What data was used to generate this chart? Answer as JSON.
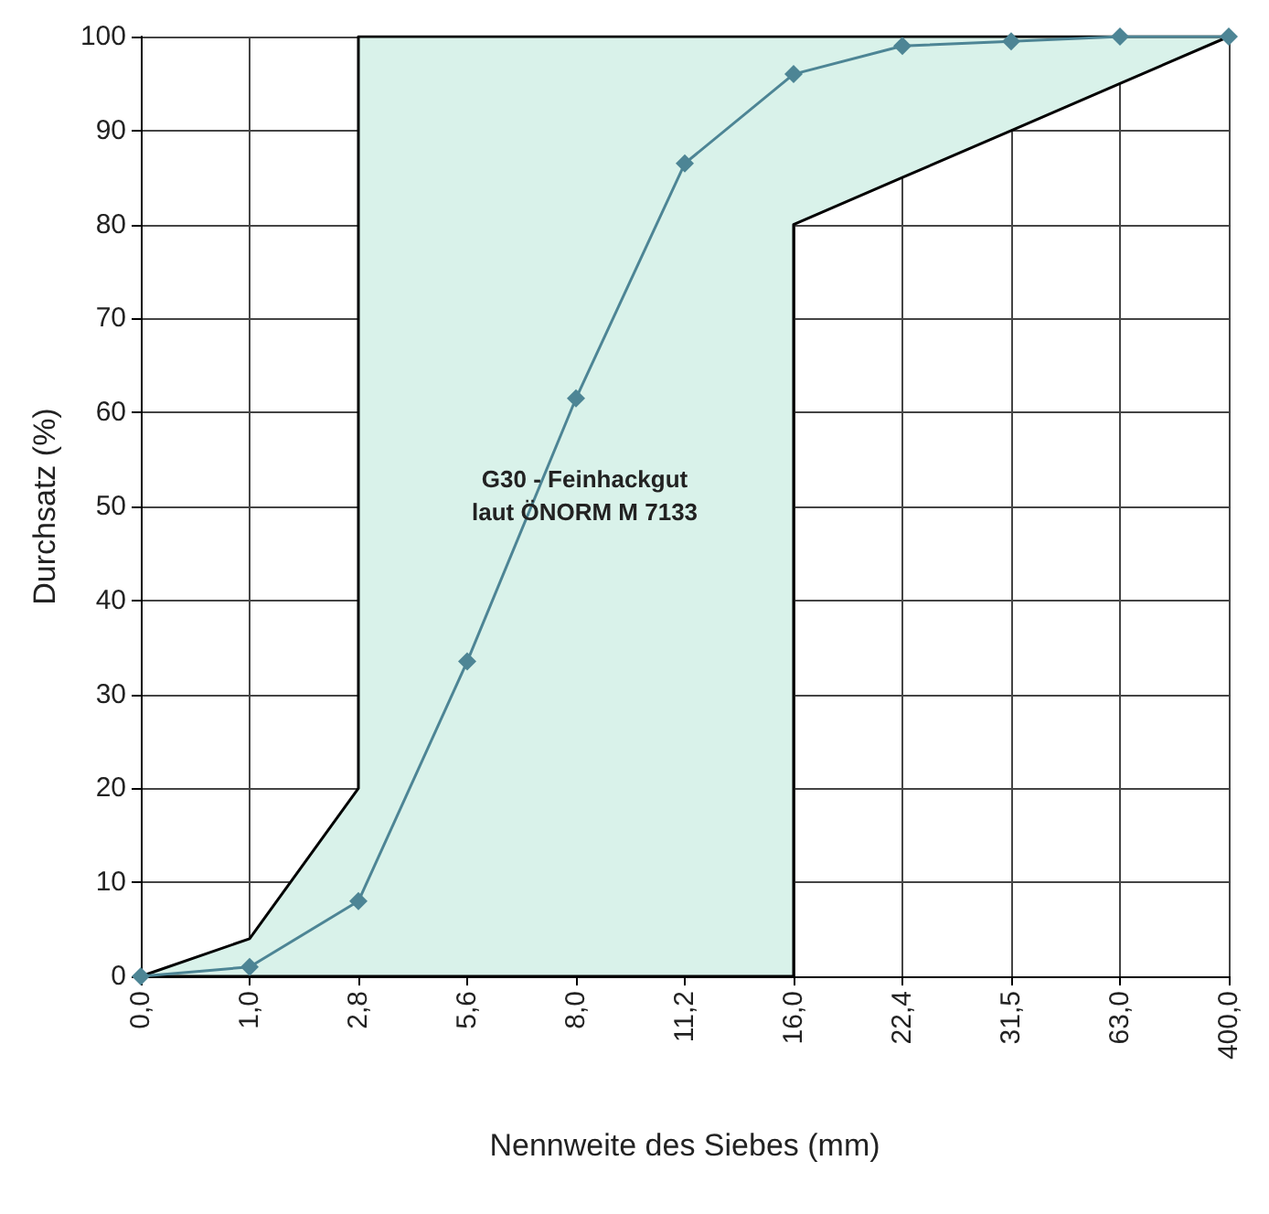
{
  "chart_data": {
    "type": "line",
    "xlabel": "Nennweite des Siebes (mm)",
    "ylabel": "Durchsatz (%)",
    "categories": [
      "0,0",
      "1,0",
      "2,8",
      "5,6",
      "8,0",
      "11,2",
      "16,0",
      "22,4",
      "31,5",
      "63,0",
      "400,0"
    ],
    "ylim": [
      0,
      100
    ],
    "yticks": [
      0,
      10,
      20,
      30,
      40,
      50,
      60,
      70,
      80,
      90,
      100
    ],
    "grid": true,
    "annotations": [
      "G30 - Feinhackgut\nlaut ÖNORM M 7133"
    ],
    "series": [
      {
        "type": "line",
        "color": "#000000",
        "marker": "none",
        "x": [
          "0,0",
          "1,0",
          "2,8",
          "2,8",
          "5,6",
          "8,0",
          "11,2",
          "16,0",
          "16,0",
          "22,4",
          "31,5",
          "63,0",
          "400,0"
        ],
        "values": [
          0,
          4,
          20,
          100,
          100,
          100,
          100,
          100,
          100,
          100,
          100,
          100,
          100
        ],
        "lower": [
          0,
          0,
          0,
          0,
          0,
          0,
          0,
          0,
          80,
          85,
          90,
          95,
          100
        ],
        "upper": [
          0,
          4,
          20,
          100,
          100,
          100,
          100,
          100,
          100,
          100,
          100,
          100,
          100
        ]
      },
      {
        "type": "line",
        "color": "#000000",
        "marker": "none",
        "x": [
          "0,0",
          "1,0",
          "2,8",
          "2,8",
          "5,6",
          "8,0",
          "11,2",
          "16,0",
          "16,0",
          "22,4",
          "31,5",
          "63,0",
          "400,0"
        ],
        "values": [
          0,
          0,
          0,
          0,
          0,
          0,
          0,
          0,
          80,
          85,
          90,
          95,
          100
        ]
      },
      {
        "color": "#4d8595",
        "marker": "diamond",
        "values": [
          0,
          1,
          8,
          33.5,
          61.5,
          86.5,
          96,
          99,
          99.5,
          100,
          100
        ]
      }
    ]
  }
}
